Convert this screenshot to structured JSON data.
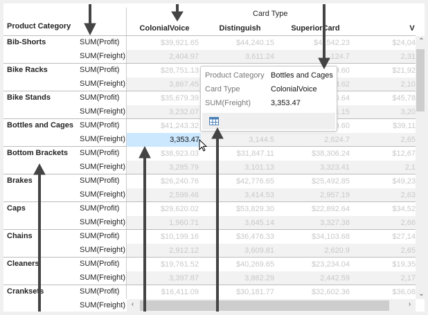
{
  "header": {
    "row_dimension": "Product Category",
    "column_dimension": "Card Type",
    "columns": [
      "ColonialVoice",
      "Distinguish",
      "SuperiorCard",
      "V"
    ]
  },
  "measures": {
    "profit": "SUM(Profit)",
    "freight": "SUM(Freight)"
  },
  "rows": [
    {
      "category": "Bib-Shorts",
      "profit": [
        "$39,921.65",
        "$44,240.15",
        "$4  ,542.23",
        "$24,04"
      ],
      "freight": [
        "2,404.97",
        "3,611.24",
        ",124.7",
        "2,31"
      ]
    },
    {
      "category": "Bike Racks",
      "profit": [
        "$28,751.13",
        "",
        "9.60",
        "$21,92"
      ],
      "freight": [
        "3,867.45",
        "",
        "8.62",
        "2,10"
      ]
    },
    {
      "category": "Bike Stands",
      "profit": [
        "$35,679.39",
        "",
        "0.64",
        "$45,78"
      ],
      "freight": [
        "3,232.07",
        "",
        "1.15",
        "3,20"
      ]
    },
    {
      "category": "Bottles and Cages",
      "profit": [
        "$41,243.32",
        "",
        "9.60",
        "$39,11"
      ],
      "freight": [
        "3,353.47",
        "3,144.5",
        "2,624.7",
        "2,65"
      ]
    },
    {
      "category": "Bottom Brackets",
      "profit": [
        "$38,923.03",
        "$31,847.11",
        "$38,306.24",
        "$12,67"
      ],
      "freight": [
        "3,285.79",
        "3,101.13",
        "3,323.41",
        "2,1"
      ]
    },
    {
      "category": "Brakes",
      "profit": [
        "$26,240.76",
        "$42,776.65",
        "$25,492.85",
        "$49,23"
      ],
      "freight": [
        "2,599.46",
        "3,414.53",
        "2,957.19",
        "2,63"
      ]
    },
    {
      "category": "Caps",
      "profit": [
        "$29,620.02",
        "$53,829.30",
        "$22,892.64",
        "$34,52"
      ],
      "freight": [
        "1,960.71",
        "3,645.14",
        "3,327.38",
        "2,66"
      ]
    },
    {
      "category": "Chains",
      "profit": [
        "$10,199.16",
        "$36,476.33",
        "$34,103.68",
        "$27,14"
      ],
      "freight": [
        "2,912.12",
        "3,609.81",
        "2,620.9",
        "2,65"
      ]
    },
    {
      "category": "Cleaners",
      "profit": [
        "$19,761.52",
        "$40,269.65",
        "$23,234.04",
        "$19,35"
      ],
      "freight": [
        "3,397.87",
        "3,862.29",
        "2,442.59",
        "2,17"
      ]
    },
    {
      "category": "Cranksets",
      "profit": [
        "$16,411.09",
        "$30,181.77",
        "$32,602.36",
        "$36,08"
      ],
      "freight": []
    }
  ],
  "selected_cell": {
    "category": "Bottles and Cages",
    "column": "ColonialVoice",
    "measure": "SUM(Freight)",
    "value": "3,353.47"
  },
  "tooltip": {
    "items": [
      {
        "key": "Product Category",
        "value": "Bottles and Cages"
      },
      {
        "key": "Card Type",
        "value": "ColonialVoice"
      },
      {
        "key": "SUM(Freight)",
        "value": "3,353.47"
      }
    ],
    "footer_icon": "table-icon"
  },
  "scrollbars": {
    "vertical_position": 0.0,
    "horizontal_position": 0.0
  },
  "colors": {
    "selection": "#cce8ff",
    "alt_row": "#f2f2f2",
    "annotation_arrow": "#444444"
  }
}
